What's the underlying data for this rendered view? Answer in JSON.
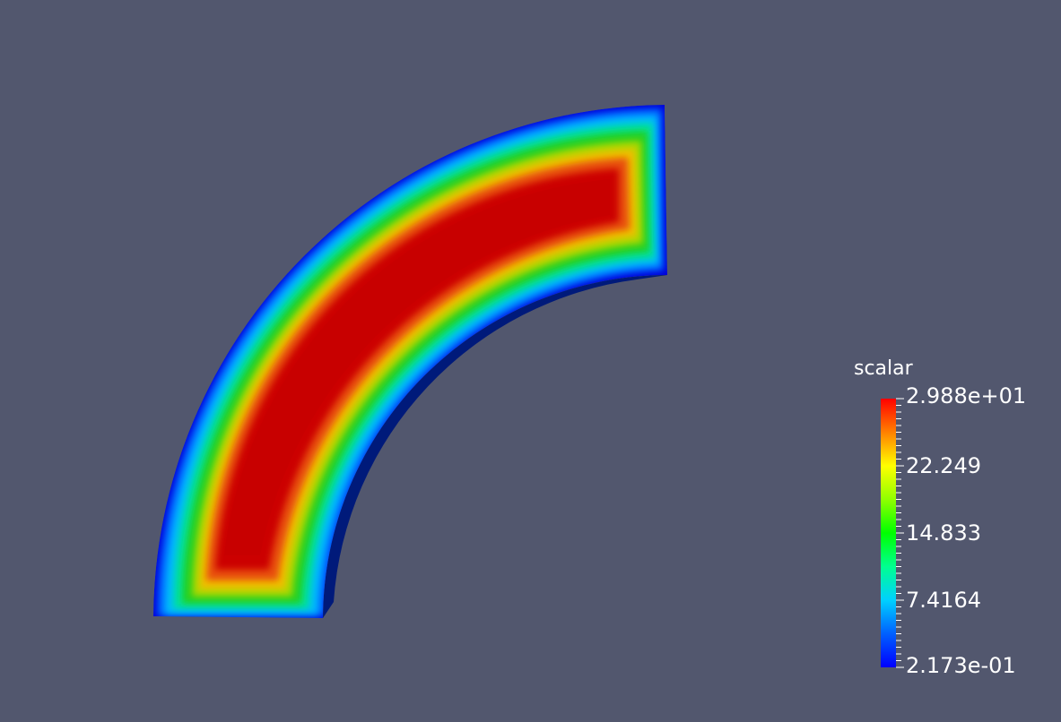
{
  "scalar_bar": {
    "title": "scalar",
    "max_label": "2.988e+01",
    "labels": [
      "22.249",
      "14.833",
      "7.4164"
    ],
    "min_label": "2.173e-01",
    "range": [
      0.2173,
      29.88
    ],
    "colormap": [
      "#0000ff",
      "#0080ff",
      "#00ffff",
      "#00ff80",
      "#00ff00",
      "#80ff00",
      "#ffff00",
      "#ff8000",
      "#ff0000"
    ]
  },
  "scene": {
    "background": "#52576e",
    "object": "quarter-annulus-slab"
  }
}
